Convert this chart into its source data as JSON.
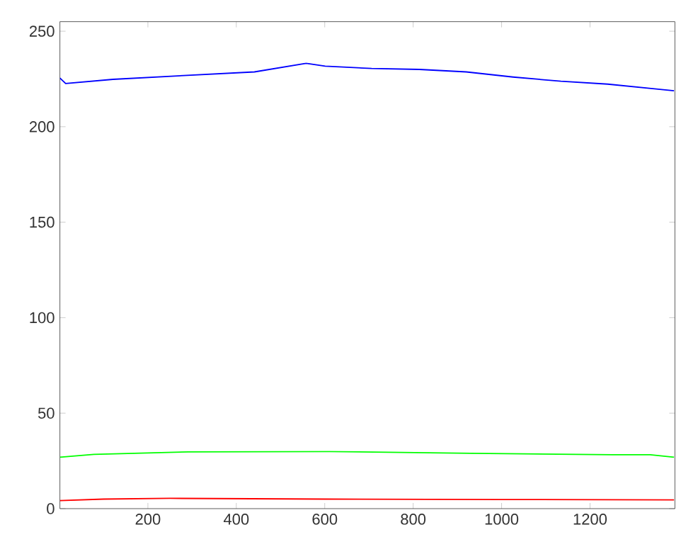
{
  "chart_data": {
    "type": "line",
    "xlim": [
      1,
      1392
    ],
    "ylim": [
      0,
      255
    ],
    "xticks": [
      200,
      400,
      600,
      800,
      1000,
      1200
    ],
    "yticks": [
      0,
      50,
      100,
      150,
      200,
      250
    ],
    "series": [
      {
        "color": "#0000ff",
        "x": [
          1,
          14,
          121,
          281,
          441,
          558,
          601,
          706,
          814,
          920,
          1026,
          1134,
          1240,
          1346,
          1390
        ],
        "values": [
          225.5,
          222.6,
          224.8,
          226.8,
          228.7,
          233.2,
          231.7,
          230.5,
          230,
          228.7,
          226,
          223.8,
          222.3,
          219.8,
          218.8
        ]
      },
      {
        "color": "#00ff00",
        "x": [
          1,
          78,
          291,
          611,
          931,
          1251,
          1336,
          1390
        ],
        "values": [
          26.9,
          28.4,
          29.7,
          29.9,
          29,
          28.2,
          28.2,
          26.9
        ]
      },
      {
        "color": "#ff0000",
        "x": [
          1,
          100,
          250,
          600,
          1000,
          1390
        ],
        "values": [
          4.2,
          5,
          5.4,
          5,
          4.8,
          4.6
        ]
      }
    ]
  }
}
